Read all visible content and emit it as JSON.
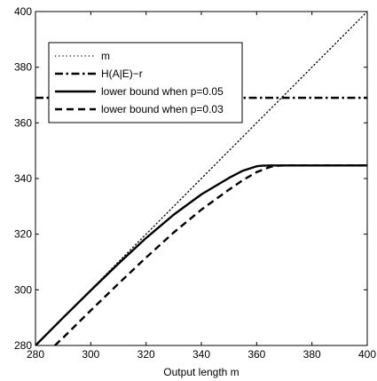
{
  "chart_data": {
    "type": "line",
    "title": "",
    "xlabel": "Output length m",
    "ylabel": "",
    "xlim": [
      280,
      400
    ],
    "ylim": [
      280,
      400
    ],
    "xticks": [
      280,
      300,
      320,
      340,
      360,
      380,
      400
    ],
    "yticks": [
      280,
      300,
      320,
      340,
      360,
      380,
      400
    ],
    "grid": false,
    "legend_position": "top-left",
    "series": [
      {
        "name": "m",
        "style": "dotted",
        "x": [
          280,
          400
        ],
        "y": [
          280,
          400
        ]
      },
      {
        "name": "H(A|E)−r",
        "style": "dashdot",
        "x": [
          280,
          400
        ],
        "y": [
          369,
          369
        ]
      },
      {
        "name": "lower bound when p=0.05",
        "style": "solid",
        "x": [
          280,
          290,
          300,
          310,
          320,
          330,
          340,
          350,
          355,
          360,
          362,
          365,
          370,
          380,
          390,
          400
        ],
        "y": [
          280,
          290,
          299.8,
          309.4,
          318.6,
          327,
          334.3,
          340.2,
          342.8,
          344.4,
          344.6,
          344.7,
          344.7,
          344.7,
          344.7,
          344.7
        ]
      },
      {
        "name": "lower bound when p=0.03",
        "style": "dashed",
        "x": [
          287,
          290,
          300,
          310,
          320,
          330,
          340,
          350,
          355,
          360,
          365,
          368,
          370,
          380,
          390,
          400
        ],
        "y": [
          280,
          282.8,
          292.6,
          302.2,
          311.6,
          320.6,
          328.8,
          336,
          339.4,
          342.3,
          344.2,
          344.6,
          344.7,
          344.7,
          344.7,
          344.7
        ]
      }
    ],
    "colors": {
      "line": "#000000",
      "background": "#ffffff"
    }
  }
}
